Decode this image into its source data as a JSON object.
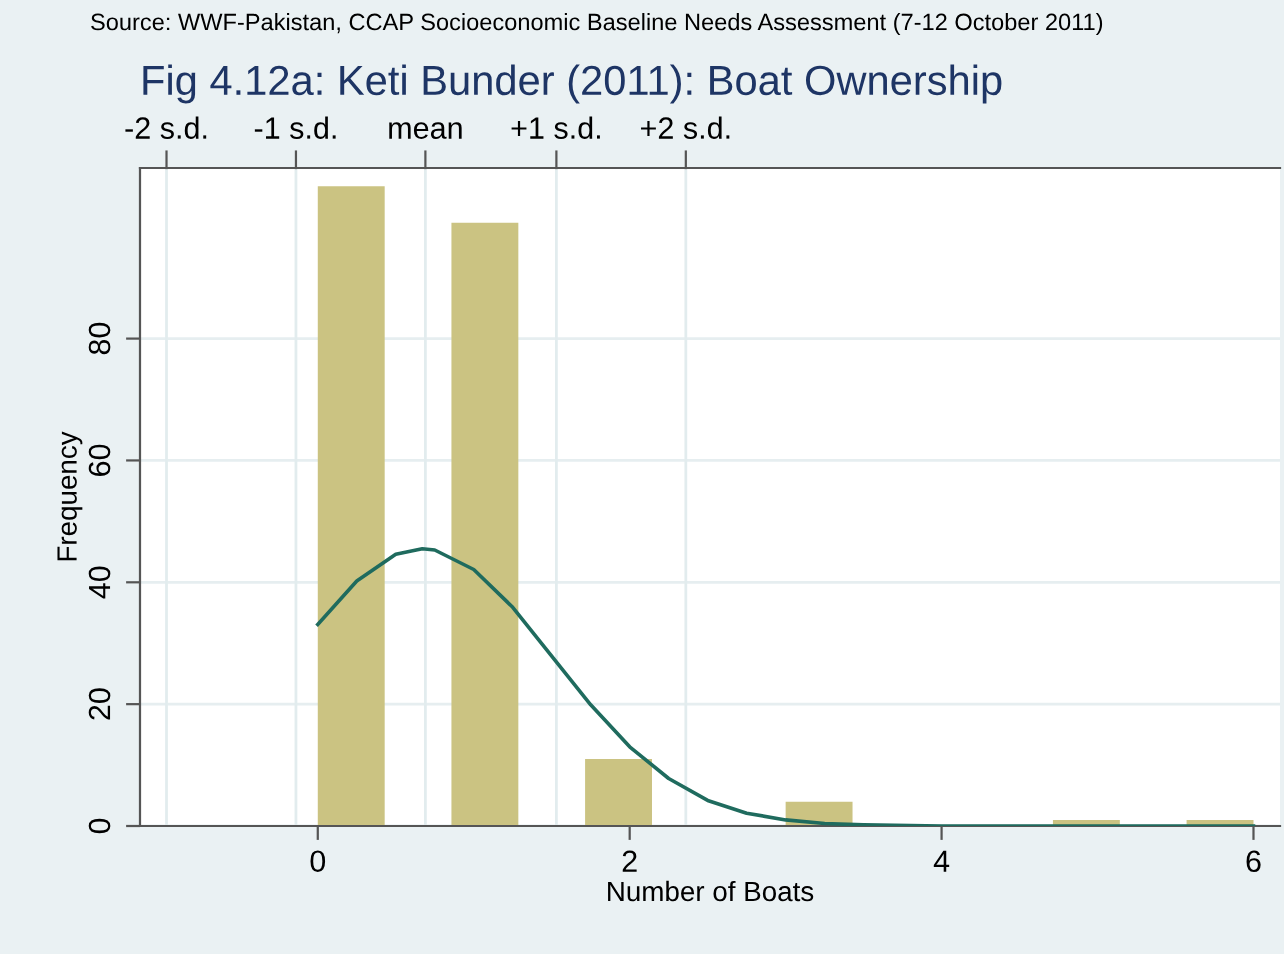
{
  "chart_data": {
    "type": "histogram",
    "title": "Fig 4.12a: Keti Bunder (2011): Boat Ownership",
    "xlabel": "Number of Boats",
    "ylabel": "Frequency",
    "annotations": [
      "Source: WWF-Pakistan, CCAP Socioeconomic Baseline Needs Assessment (7-12 October 2011)"
    ],
    "bins": [
      0,
      0.429,
      0.857,
      1.286,
      1.714,
      2.143,
      2.571,
      3,
      3.429,
      3.857,
      4.286,
      4.714,
      5.143,
      5.571,
      6
    ],
    "values": [
      105,
      0,
      99,
      0,
      11,
      0,
      0,
      4,
      0,
      0,
      0,
      1,
      0,
      1
    ],
    "color": "#cbc382",
    "series": [
      {
        "type": "line",
        "color": "#1f6b5e",
        "x": [
          0,
          0.25,
          0.5,
          0.67,
          0.75,
          1,
          1.25,
          1.5,
          1.75,
          2,
          2.25,
          2.5,
          2.75,
          3,
          3.25,
          3.5,
          4,
          5,
          6
        ],
        "values": [
          33.1,
          40.2,
          44.6,
          45.5,
          45.3,
          42.1,
          35.9,
          27.9,
          19.9,
          13,
          7.8,
          4.2,
          2.1,
          1,
          0.4,
          0.2,
          0,
          0,
          0
        ]
      }
    ],
    "xlim": [
      -1.14,
      6.17
    ],
    "xticks": [
      0,
      2,
      4,
      6
    ],
    "ylim": [
      0,
      108
    ],
    "yticks": [
      0,
      20,
      40,
      60,
      80
    ],
    "ref_lines": [
      {
        "axis": "x",
        "value": -0.97,
        "label": "-2 s.d.",
        "color": "#e2ecee"
      },
      {
        "axis": "x",
        "value": -0.14,
        "label": "-1 s.d.",
        "color": "#e2ecee"
      },
      {
        "axis": "x",
        "value": 0.69,
        "label": "mean",
        "color": "#e2ecee"
      },
      {
        "axis": "x",
        "value": 1.53,
        "label": "+1 s.d.",
        "color": "#e2ecee"
      },
      {
        "axis": "x",
        "value": 2.36,
        "label": "+2 s.d.",
        "color": "#e2ecee"
      }
    ],
    "grid": "y"
  }
}
